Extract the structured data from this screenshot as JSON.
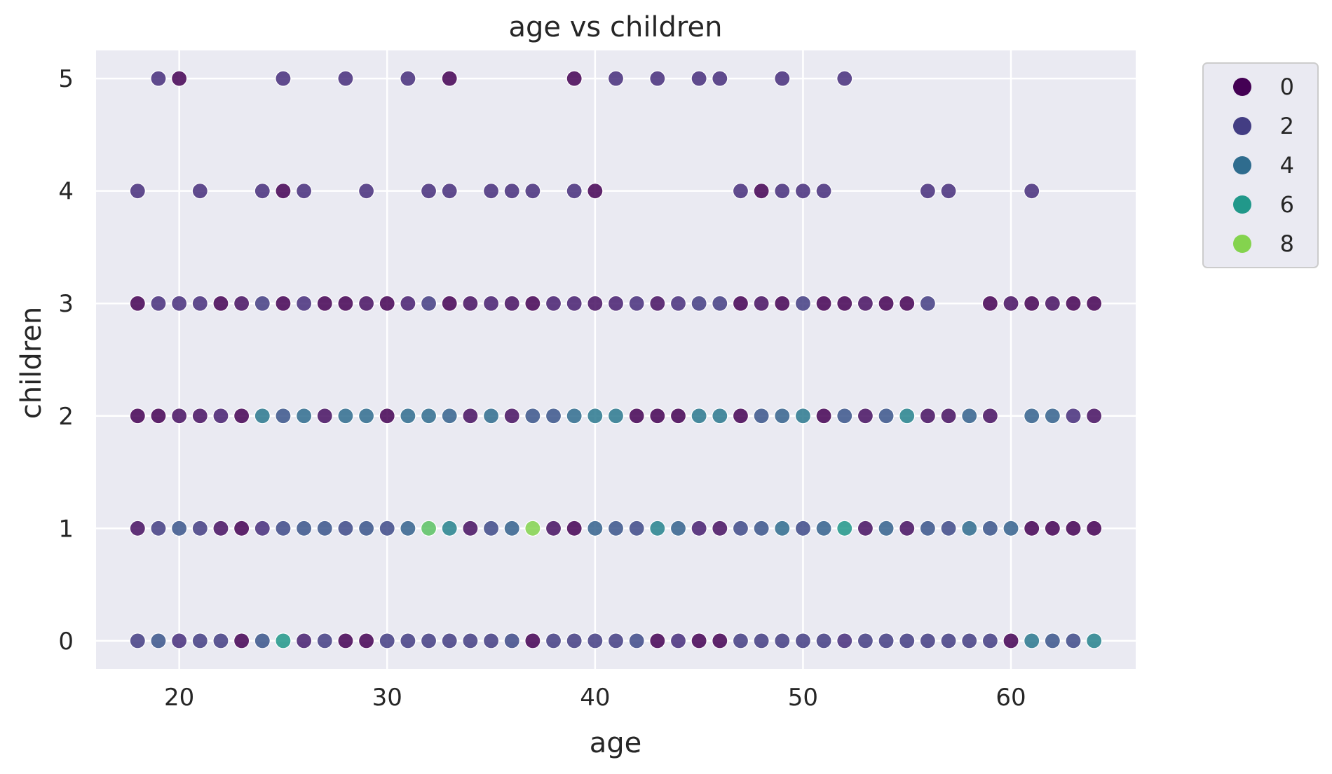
{
  "chart_data": {
    "type": "scatter",
    "title": "age vs children",
    "xlabel": "age",
    "ylabel": "children",
    "xlim": [
      16,
      66
    ],
    "ylim": [
      -0.25,
      5.25
    ],
    "xticks": [
      20,
      30,
      40,
      50,
      60
    ],
    "yticks": [
      0,
      1,
      2,
      3,
      4,
      5
    ],
    "grid": true,
    "hue_label": "",
    "hue_range": [
      0,
      9
    ],
    "legend": {
      "position": "outside-right",
      "entries": [
        0,
        2,
        4,
        6,
        8
      ]
    },
    "rows": [
      {
        "children": 5,
        "ages": [
          19,
          20,
          25,
          28,
          31,
          33,
          39,
          41,
          43,
          45,
          46,
          49,
          52
        ],
        "hues": [
          1.5,
          0,
          1.5,
          1.5,
          1.5,
          0,
          0,
          1.5,
          1.5,
          1.5,
          1.5,
          1.5,
          1.5
        ]
      },
      {
        "children": 4,
        "ages": [
          18,
          21,
          24,
          25,
          26,
          29,
          32,
          33,
          35,
          36,
          37,
          39,
          40,
          47,
          48,
          49,
          50,
          51,
          56,
          57,
          61
        ],
        "hues": [
          1.5,
          1.5,
          1.5,
          0,
          1.5,
          1.5,
          1.5,
          1.5,
          1.5,
          1.5,
          1.5,
          1.5,
          0,
          1.5,
          0,
          1.5,
          1.5,
          1.5,
          1.5,
          1.5,
          1.5
        ]
      },
      {
        "children": 3,
        "ages": [
          18,
          19,
          20,
          21,
          22,
          23,
          24,
          25,
          26,
          27,
          28,
          29,
          30,
          31,
          32,
          33,
          34,
          35,
          36,
          37,
          38,
          39,
          40,
          41,
          42,
          43,
          44,
          45,
          46,
          47,
          48,
          49,
          50,
          51,
          52,
          53,
          54,
          55,
          56,
          59,
          60,
          61,
          62,
          63,
          64
        ],
        "hues": [
          0,
          1.5,
          1.5,
          1.5,
          0,
          0.5,
          2,
          0,
          1.5,
          0,
          0,
          0.5,
          0,
          1,
          2,
          0,
          0.5,
          1,
          0.5,
          0,
          1,
          1,
          0.5,
          1,
          1.5,
          0.5,
          1.5,
          2,
          2,
          0,
          0.5,
          0,
          2,
          0,
          0,
          0.5,
          0,
          0,
          2,
          0,
          0.5,
          0,
          0.5,
          0,
          0
        ]
      },
      {
        "children": 2,
        "ages": [
          18,
          19,
          20,
          21,
          22,
          23,
          24,
          25,
          26,
          27,
          28,
          29,
          30,
          31,
          32,
          33,
          34,
          35,
          36,
          37,
          38,
          39,
          40,
          41,
          42,
          43,
          44,
          45,
          46,
          47,
          48,
          49,
          50,
          51,
          52,
          53,
          54,
          55,
          56,
          57,
          58,
          59,
          61,
          62,
          63,
          64
        ],
        "hues": [
          0,
          0,
          0.5,
          0.5,
          1,
          0,
          4.5,
          3,
          4,
          0.5,
          4,
          4,
          0,
          4,
          4,
          3.5,
          0.5,
          4,
          0.5,
          3,
          3,
          4,
          4.5,
          4.5,
          0,
          0,
          0,
          4.5,
          4.5,
          0,
          3,
          3.5,
          4.5,
          0,
          3,
          0.5,
          3,
          5,
          0.5,
          0.5,
          3.5,
          0.5,
          3.5,
          3.5,
          1.5,
          0.5
        ]
      },
      {
        "children": 1,
        "ages": [
          18,
          19,
          20,
          21,
          22,
          23,
          24,
          25,
          26,
          27,
          28,
          29,
          30,
          31,
          32,
          33,
          34,
          35,
          36,
          37,
          38,
          39,
          40,
          41,
          42,
          43,
          44,
          45,
          46,
          47,
          48,
          49,
          50,
          51,
          52,
          53,
          54,
          55,
          56,
          57,
          58,
          59,
          60,
          61,
          62,
          63,
          64
        ],
        "hues": [
          0.5,
          2,
          3,
          2,
          0.5,
          0,
          1.5,
          2.5,
          3,
          3,
          2.5,
          3,
          2.5,
          3.5,
          7.5,
          5,
          0.5,
          2.5,
          3.5,
          8,
          0.5,
          0,
          3.5,
          3,
          2.5,
          5,
          3.5,
          1,
          0.5,
          2.5,
          3,
          4,
          2.5,
          3.5,
          6,
          0.5,
          3.5,
          0.5,
          3,
          2.5,
          4,
          3,
          3.5,
          0,
          0,
          0,
          0
        ]
      },
      {
        "children": 0,
        "ages": [
          18,
          19,
          20,
          21,
          22,
          23,
          24,
          25,
          26,
          27,
          28,
          29,
          30,
          31,
          32,
          33,
          34,
          35,
          36,
          37,
          38,
          39,
          40,
          41,
          42,
          43,
          44,
          45,
          46,
          47,
          48,
          49,
          50,
          51,
          52,
          53,
          54,
          55,
          56,
          57,
          58,
          59,
          60,
          61,
          62,
          63,
          64
        ],
        "hues": [
          2,
          3,
          1.5,
          2,
          2,
          0,
          3,
          6,
          1,
          2,
          0,
          0,
          2,
          2,
          2,
          2,
          2,
          2,
          2.5,
          0,
          2,
          2,
          2,
          2,
          2.5,
          0,
          1.5,
          0,
          0,
          2,
          2,
          2,
          2,
          2,
          1.5,
          2,
          2,
          2,
          2,
          2,
          2,
          2,
          0,
          4.5,
          3,
          2.5,
          5
        ]
      }
    ]
  }
}
